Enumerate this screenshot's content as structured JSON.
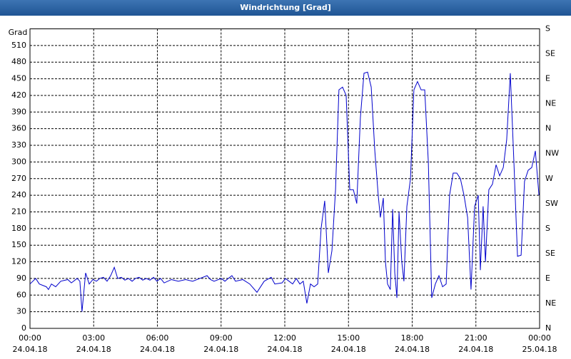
{
  "chart_data": {
    "type": "line",
    "title": "Windrichtung [Grad]",
    "ylabel": "Grad",
    "x": [
      0,
      0.27,
      0.44,
      0.77,
      0.87,
      1.01,
      1.21,
      1.45,
      1.78,
      1.95,
      2.22,
      2.35,
      2.45,
      2.62,
      2.79,
      2.96,
      3.13,
      3.29,
      3.46,
      3.63,
      3.8,
      3.97,
      4.13,
      4.3,
      4.47,
      4.64,
      4.81,
      4.97,
      5.14,
      5.31,
      5.48,
      5.65,
      5.82,
      5.98,
      6.15,
      6.32,
      6.66,
      6.99,
      7.33,
      7.66,
      8,
      8.34,
      8.5,
      8.67,
      9.01,
      9.18,
      9.34,
      9.51,
      9.68,
      10.02,
      10.35,
      10.69,
      11.03,
      11.36,
      11.53,
      11.87,
      12.03,
      12.2,
      12.37,
      12.54,
      12.71,
      12.87,
      13.04,
      13.21,
      13.38,
      13.55,
      13.71,
      13.88,
      14.05,
      14.22,
      14.39,
      14.55,
      14.72,
      14.89,
      15.06,
      15.23,
      15.39,
      15.56,
      15.73,
      15.9,
      16.07,
      16.24,
      16.4,
      16.5,
      16.64,
      16.74,
      16.84,
      16.97,
      17.08,
      17.18,
      17.28,
      17.38,
      17.51,
      17.61,
      17.75,
      17.92,
      18.08,
      18.25,
      18.42,
      18.59,
      18.76,
      18.92,
      19.09,
      19.26,
      19.43,
      19.6,
      19.76,
      19.93,
      20.1,
      20.27,
      20.44,
      20.61,
      20.77,
      20.94,
      21.11,
      21.21,
      21.34,
      21.45,
      21.61,
      21.78,
      21.95,
      22.12,
      22.29,
      22.45,
      22.62,
      22.79,
      22.96,
      23.13,
      23.29,
      23.46,
      23.63,
      23.8,
      23.97
    ],
    "series": [
      {
        "color": "#0000cc",
        "values": [
          80,
          90,
          80,
          75,
          70,
          80,
          75,
          85,
          88,
          82,
          90,
          85,
          30,
          100,
          80,
          88,
          85,
          90,
          92,
          85,
          95,
          110,
          90,
          92,
          87,
          90,
          85,
          90,
          92,
          87,
          90,
          87,
          92,
          85,
          90,
          82,
          88,
          85,
          88,
          85,
          90,
          95,
          88,
          85,
          90,
          85,
          90,
          95,
          85,
          88,
          80,
          65,
          85,
          92,
          80,
          82,
          90,
          85,
          80,
          90,
          80,
          85,
          45,
          80,
          75,
          80,
          180,
          230,
          100,
          140,
          250,
          430,
          435,
          420,
          250,
          250,
          225,
          380,
          460,
          462,
          435,
          320,
          240,
          200,
          235,
          120,
          80,
          70,
          215,
          100,
          55,
          210,
          120,
          85,
          220,
          270,
          430,
          445,
          430,
          430,
          300,
          55,
          80,
          95,
          75,
          80,
          240,
          280,
          280,
          270,
          240,
          200,
          70,
          220,
          240,
          105,
          220,
          120,
          250,
          260,
          295,
          275,
          290,
          340,
          460,
          300,
          130,
          132,
          265,
          285,
          290,
          320,
          240
        ]
      }
    ],
    "xlim": [
      0,
      24
    ],
    "xticks": [
      {
        "value": 0,
        "label": "00:00"
      },
      {
        "value": 3,
        "label": "03:00"
      },
      {
        "value": 6,
        "label": "06:00"
      },
      {
        "value": 9,
        "label": "09:00"
      },
      {
        "value": 12,
        "label": "12:00"
      },
      {
        "value": 15,
        "label": "15:00"
      },
      {
        "value": 18,
        "label": "18:00"
      },
      {
        "value": 21,
        "label": "21:00"
      },
      {
        "value": 24,
        "label": "00:00"
      }
    ],
    "xtick_dates": [
      "24.04.18",
      "24.04.18",
      "24.04.18",
      "24.04.18",
      "24.04.18",
      "24.04.18",
      "24.04.18",
      "24.04.18",
      "25.04.18"
    ],
    "ylim": [
      0,
      540
    ],
    "yticks": [
      0,
      30,
      60,
      90,
      120,
      150,
      180,
      210,
      240,
      270,
      300,
      330,
      360,
      390,
      420,
      450,
      480,
      510
    ],
    "y2lim": [
      0,
      540
    ],
    "y2ticks": [
      {
        "value": 0,
        "label": "N"
      },
      {
        "value": 45,
        "label": "NE"
      },
      {
        "value": 90,
        "label": "E"
      },
      {
        "value": 135,
        "label": "SE"
      },
      {
        "value": 180,
        "label": "S"
      },
      {
        "value": 225,
        "label": "SW"
      },
      {
        "value": 270,
        "label": "W"
      },
      {
        "value": 315,
        "label": "NW"
      },
      {
        "value": 360,
        "label": "N"
      },
      {
        "value": 405,
        "label": "NE"
      },
      {
        "value": 450,
        "label": "E"
      },
      {
        "value": 495,
        "label": "SE"
      },
      {
        "value": 540,
        "label": "S"
      }
    ],
    "grid": true
  }
}
